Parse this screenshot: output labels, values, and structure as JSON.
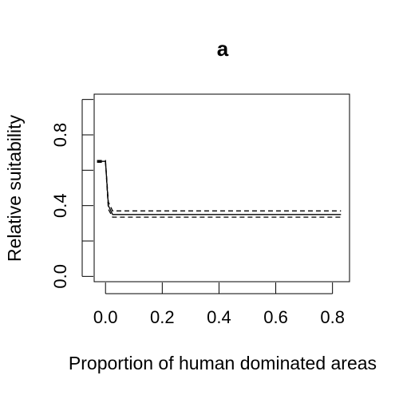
{
  "chart_data": {
    "type": "line",
    "title": "a",
    "xlabel": "Proportion of human dominated areas",
    "ylabel": "Relative suitability",
    "xlim": [
      -0.04,
      0.86
    ],
    "ylim": [
      -0.03,
      1.03
    ],
    "x_ticks": [
      0.0,
      0.2,
      0.4,
      0.6,
      0.8
    ],
    "x_tick_labels": [
      "0.0",
      "0.2",
      "0.4",
      "0.6",
      "0.8"
    ],
    "y_ticks": [
      0.0,
      0.4,
      0.8
    ],
    "y_tick_labels": [
      "0.0",
      "0.4",
      "0.8"
    ],
    "y_minor_ticks": [
      0.2,
      0.6,
      1.0
    ],
    "grid": false,
    "series": [
      {
        "style": "solid",
        "x": [
          -0.03,
          -0.005,
          0.0,
          0.01,
          0.025,
          0.83
        ],
        "y": [
          0.65,
          0.65,
          0.65,
          0.4,
          0.35,
          0.35
        ]
      },
      {
        "style": "dashed",
        "x": [
          -0.03,
          -0.005,
          0.0,
          0.01,
          0.025,
          0.83
        ],
        "y": [
          0.655,
          0.655,
          0.655,
          0.42,
          0.37,
          0.37
        ]
      },
      {
        "style": "dashed",
        "x": [
          -0.03,
          -0.005,
          0.0,
          0.01,
          0.025,
          0.83
        ],
        "y": [
          0.645,
          0.645,
          0.645,
          0.38,
          0.335,
          0.335
        ]
      }
    ]
  }
}
